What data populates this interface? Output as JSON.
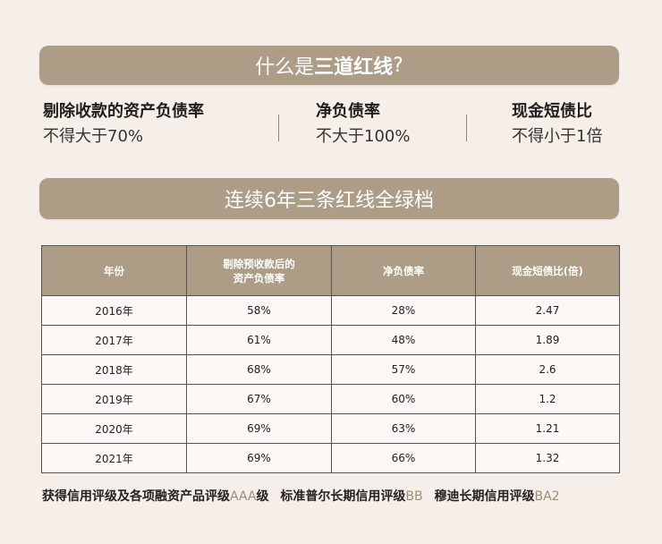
{
  "banner1": {
    "prefix": "什么是",
    "highlight": "三道红线",
    "suffix": "?"
  },
  "metrics": [
    {
      "name": "剔除收款的资产负债率",
      "limit": "不得大于70%"
    },
    {
      "name": "净负债率",
      "limit": "不大于100%"
    },
    {
      "name": "现金短债比",
      "limit": "不得小于1倍"
    }
  ],
  "banner2": {
    "title": "连续6年三条红线全绿档"
  },
  "table": {
    "headers": [
      "年份",
      "剔除预收款后的\n资产负债率",
      "净负债率",
      "现金短债比(倍)"
    ],
    "rows": [
      [
        "2016年",
        "58%",
        "28%",
        "2.47"
      ],
      [
        "2017年",
        "61%",
        "48%",
        "1.89"
      ],
      [
        "2018年",
        "68%",
        "57%",
        "2.6"
      ],
      [
        "2019年",
        "67%",
        "60%",
        "1.2"
      ],
      [
        "2020年",
        "69%",
        "63%",
        "1.21"
      ],
      [
        "2021年",
        "69%",
        "66%",
        "1.32"
      ]
    ]
  },
  "footer": [
    {
      "text": "获得信用评级及各项融资产品评级",
      "grade": "AAA",
      "suffix": "级"
    },
    {
      "text": "标准普尔长期信用评级",
      "grade": "BB",
      "suffix": ""
    },
    {
      "text": "穆迪长期信用评级",
      "grade": "BA2",
      "suffix": ""
    }
  ],
  "colors": {
    "banner_bg": "#ad9c86",
    "page_bg": "#f6efe9",
    "grade_text": "#a08d78"
  }
}
